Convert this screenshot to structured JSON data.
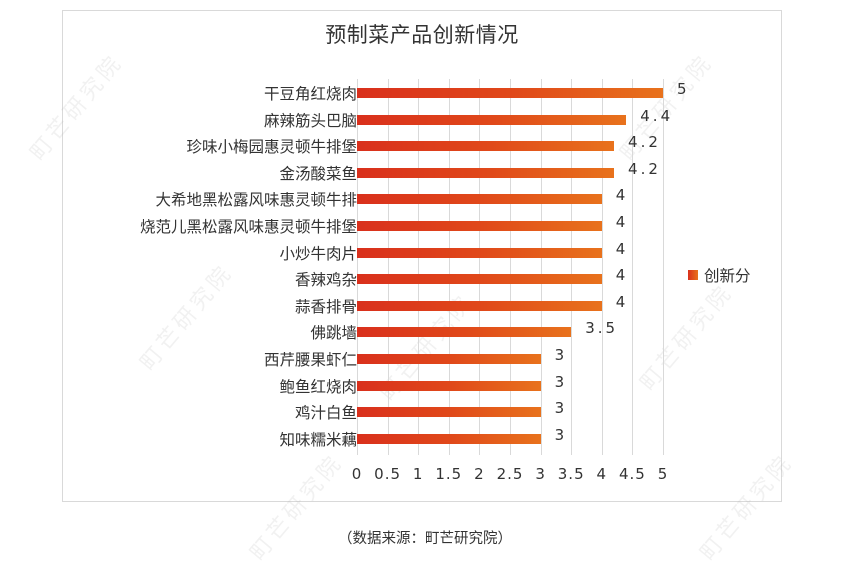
{
  "chart_data": {
    "type": "bar",
    "orientation": "horizontal",
    "title": "预制菜产品创新情况",
    "categories": [
      "干豆角红烧肉",
      "麻辣筋头巴脑",
      "珍味小梅园惠灵顿牛排堡",
      "金汤酸菜鱼",
      "大希地黑松露风味惠灵顿牛排",
      "烧范儿黑松露风味惠灵顿牛排堡",
      "小炒牛肉片",
      "香辣鸡杂",
      "蒜香排骨",
      "佛跳墙",
      "西芹腰果虾仁",
      "鲍鱼红烧肉",
      "鸡汁白鱼",
      "知味糯米藕"
    ],
    "series": [
      {
        "name": "创新分",
        "values": [
          5,
          4.4,
          4.2,
          4.2,
          4,
          4,
          4,
          4,
          4,
          3.5,
          3,
          3,
          3,
          3
        ],
        "labels": [
          "5",
          "4.4",
          "4.2",
          "4.2",
          "4",
          "4",
          "4",
          "4",
          "4",
          "3.5",
          "3",
          "3",
          "3",
          "3"
        ]
      }
    ],
    "xlabel": "",
    "ylabel": "",
    "xlim": [
      0,
      5
    ],
    "xticks": [
      "0",
      "0.5",
      "1",
      "1.5",
      "2",
      "2.5",
      "3",
      "3.5",
      "4",
      "4.5",
      "5"
    ],
    "grid": true,
    "legend_position": "right",
    "colors": {
      "bar_start": "#d9301c",
      "bar_end": "#e8721c",
      "gridline": "#d9d9d9",
      "text": "#333333"
    }
  },
  "legend": {
    "label": "创新分"
  },
  "source_note": "（数据来源：町芒研究院）",
  "watermark": "町芒研究院"
}
